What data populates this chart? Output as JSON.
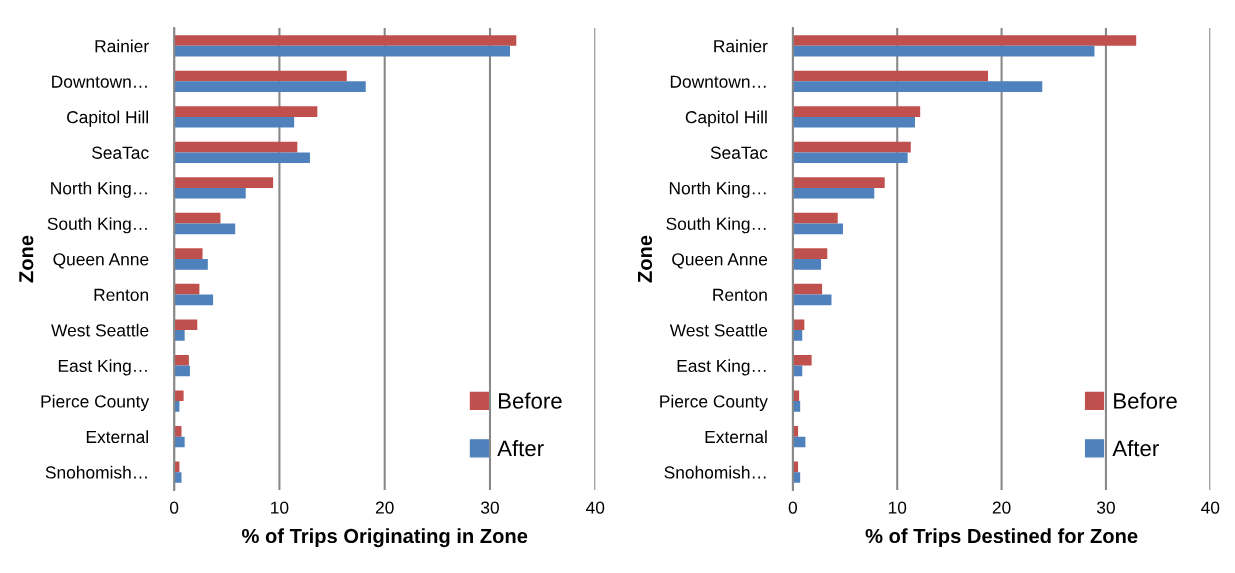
{
  "chart_data": [
    {
      "type": "bar",
      "orientation": "horizontal",
      "xlabel": "% of Trips Originating in Zone",
      "ylabel": "Zone",
      "categories": [
        "Rainier",
        "Downtown…",
        "Capitol Hill",
        "SeaTac",
        "North King…",
        "South King…",
        "Queen Anne",
        "Renton",
        "West Seattle",
        "East King…",
        "Pierce County",
        "External",
        "Snohomish…"
      ],
      "series": [
        {
          "name": "Before",
          "color": "#c0504d",
          "values": [
            32.5,
            16.4,
            13.6,
            11.7,
            9.4,
            4.4,
            2.7,
            2.4,
            2.2,
            1.4,
            0.9,
            0.7,
            0.5
          ]
        },
        {
          "name": "After",
          "color": "#4f81bd",
          "values": [
            31.9,
            18.2,
            11.4,
            12.9,
            6.8,
            5.8,
            3.2,
            3.7,
            1.0,
            1.5,
            0.5,
            1.0,
            0.7
          ]
        }
      ],
      "xlim": [
        0,
        40
      ],
      "xticks": [
        0,
        10,
        20,
        30,
        40
      ],
      "grid": "x",
      "legend": "bottom right"
    },
    {
      "type": "bar",
      "orientation": "horizontal",
      "xlabel": "% of Trips Destined for Zone",
      "ylabel": "Zone",
      "categories": [
        "Rainier",
        "Downtown…",
        "Capitol Hill",
        "SeaTac",
        "North King…",
        "South King…",
        "Queen Anne",
        "Renton",
        "West Seattle",
        "East King…",
        "Pierce County",
        "External",
        "Snohomish…"
      ],
      "series": [
        {
          "name": "Before",
          "color": "#c0504d",
          "values": [
            32.9,
            18.7,
            12.2,
            11.3,
            8.8,
            4.3,
            3.3,
            2.8,
            1.1,
            1.8,
            0.6,
            0.5,
            0.5
          ]
        },
        {
          "name": "After",
          "color": "#4f81bd",
          "values": [
            28.9,
            23.9,
            11.7,
            11.0,
            7.8,
            4.8,
            2.7,
            3.7,
            0.9,
            0.9,
            0.7,
            1.2,
            0.7
          ]
        }
      ],
      "xlim": [
        0,
        40
      ],
      "xticks": [
        0,
        10,
        20,
        30,
        40
      ],
      "grid": "x",
      "legend": "bottom right"
    }
  ]
}
